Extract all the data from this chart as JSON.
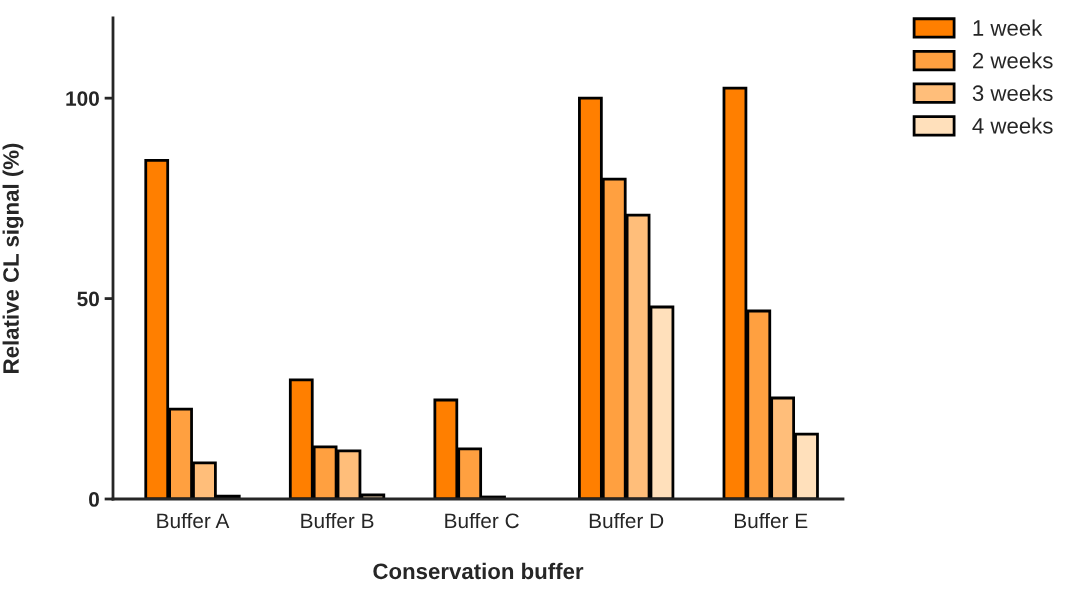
{
  "chart_data": {
    "type": "bar",
    "xlabel": "Conservation buffer",
    "ylabel": "Relative CL signal (%)",
    "categories": [
      "Buffer A",
      "Buffer B",
      "Buffer C",
      "Buffer D",
      "Buffer E"
    ],
    "series": [
      {
        "name": "1 week",
        "color": "#ff7f00",
        "values": [
          84.5,
          29.7,
          24.7,
          100,
          102.5
        ]
      },
      {
        "name": "2 weeks",
        "color": "#ffa040",
        "values": [
          22.4,
          13,
          12.5,
          79.8,
          46.9
        ]
      },
      {
        "name": "3 weeks",
        "color": "#ffbe7a",
        "values": [
          9,
          12,
          0.5,
          70.8,
          25.2
        ]
      },
      {
        "name": "4 weeks",
        "color": "#ffe0bb",
        "values": [
          0.7,
          1,
          null,
          47.9,
          16.2
        ]
      }
    ],
    "ylim": [
      0,
      120
    ],
    "yticks": [
      0,
      50,
      100
    ],
    "grid": false,
    "legend": "top right"
  }
}
